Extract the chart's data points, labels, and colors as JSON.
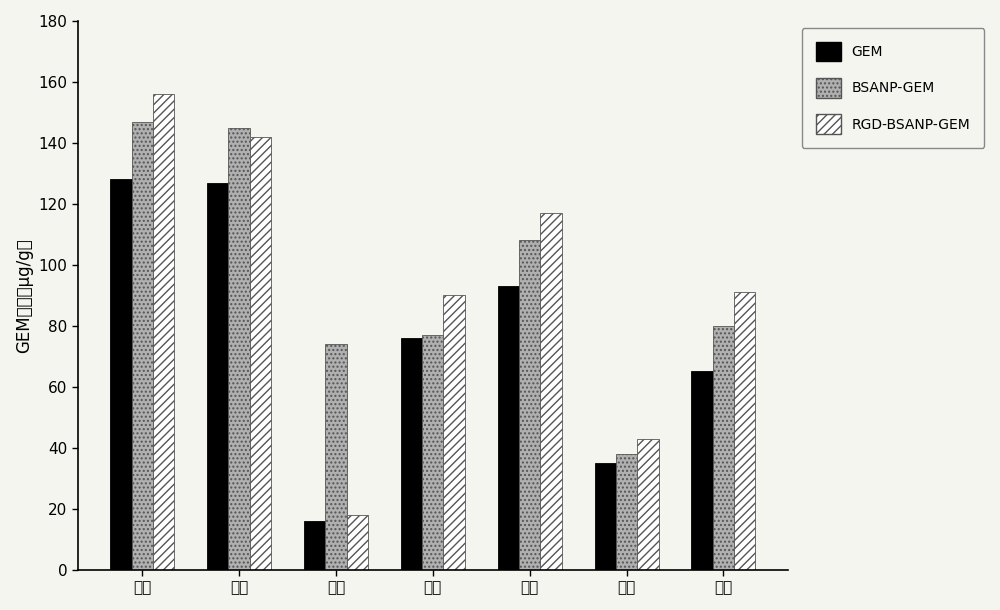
{
  "categories": [
    "肿瘤",
    "胰腺",
    "肝脏",
    "肾脏",
    "心脏",
    "脾脏",
    "肌肉"
  ],
  "series": {
    "GEM": [
      128,
      127,
      16,
      76,
      93,
      35,
      65
    ],
    "BSANP-GEM": [
      147,
      145,
      74,
      77,
      108,
      38,
      80
    ],
    "RGD-BSANP-GEM": [
      156,
      142,
      18,
      90,
      117,
      43,
      91
    ]
  },
  "legend_labels": [
    "GEM",
    "BSANP-GEM",
    "RGD-BSANP-GEM"
  ],
  "ylabel": "GEM浓度（μg/g）",
  "ylim": [
    0,
    180
  ],
  "yticks": [
    0,
    20,
    40,
    60,
    80,
    100,
    120,
    140,
    160,
    180
  ],
  "bar_width": 0.22,
  "colors": [
    "#000000",
    "#b0b0b0",
    "#ffffff"
  ],
  "hatches": [
    "",
    "....",
    "////"
  ],
  "edgecolors": [
    "#000000",
    "#555555",
    "#555555"
  ],
  "background_color": "#f5f5f0",
  "legend_fontsize": 10,
  "axis_fontsize": 12,
  "tick_fontsize": 11
}
